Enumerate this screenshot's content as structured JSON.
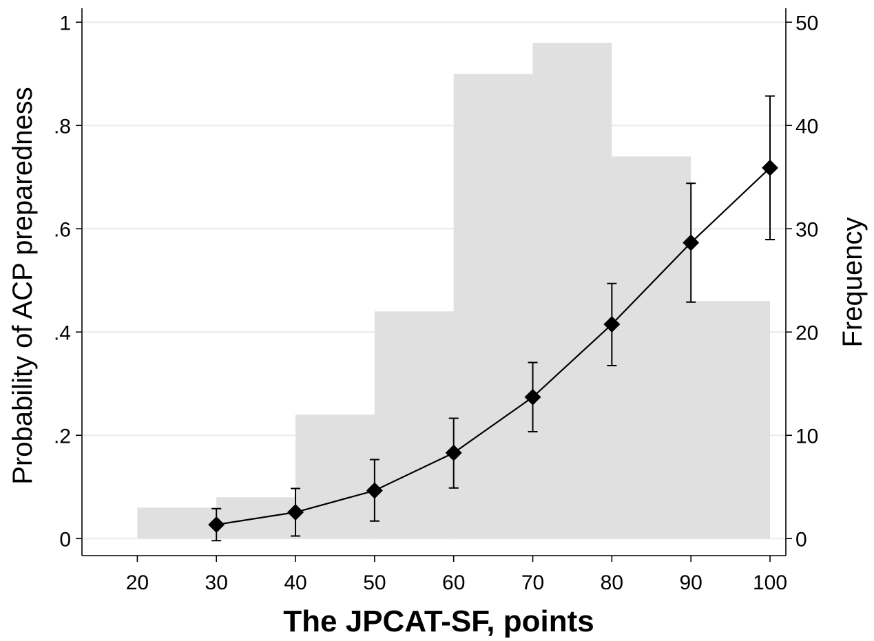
{
  "chart_data": {
    "type": "bar",
    "xlabel": "The JPCAT-SF, points",
    "ylabel": "Probability of ACP preparedness",
    "y2label": "Frequency",
    "xlim": [
      13,
      102
    ],
    "ylim": [
      -0.033,
      1.027
    ],
    "y2lim": [
      -1.65,
      51.35
    ],
    "x_ticks": [
      "20",
      "30",
      "40",
      "50",
      "60",
      "70",
      "80",
      "90",
      "100"
    ],
    "y_ticks": [
      "0",
      ".2",
      ".4",
      ".6",
      ".8",
      "1"
    ],
    "y2_ticks": [
      "0",
      "10",
      "20",
      "30",
      "40",
      "50"
    ],
    "grid": true,
    "histogram": {
      "name": "Frequency",
      "color": "#e0e0e0",
      "bins": [
        {
          "from": 20,
          "to": 30,
          "frequency": 3
        },
        {
          "from": 30,
          "to": 40,
          "frequency": 4
        },
        {
          "from": 40,
          "to": 50,
          "frequency": 12
        },
        {
          "from": 50,
          "to": 60,
          "frequency": 22
        },
        {
          "from": 60,
          "to": 70,
          "frequency": 45
        },
        {
          "from": 70,
          "to": 80,
          "frequency": 48
        },
        {
          "from": 80,
          "to": 90,
          "frequency": 37
        },
        {
          "from": 90,
          "to": 100,
          "frequency": 23
        }
      ]
    },
    "probability": {
      "type": "line",
      "marker": "diamond",
      "color": "#000000",
      "x": [
        30,
        40,
        50,
        60,
        70,
        80,
        90,
        100
      ],
      "y": [
        0.027,
        0.051,
        0.093,
        0.166,
        0.274,
        0.415,
        0.573,
        0.718
      ],
      "ci_lower": [
        -0.004,
        0.005,
        0.034,
        0.098,
        0.207,
        0.335,
        0.458,
        0.579
      ],
      "ci_upper": [
        0.058,
        0.097,
        0.153,
        0.233,
        0.341,
        0.494,
        0.688,
        0.857
      ]
    }
  }
}
